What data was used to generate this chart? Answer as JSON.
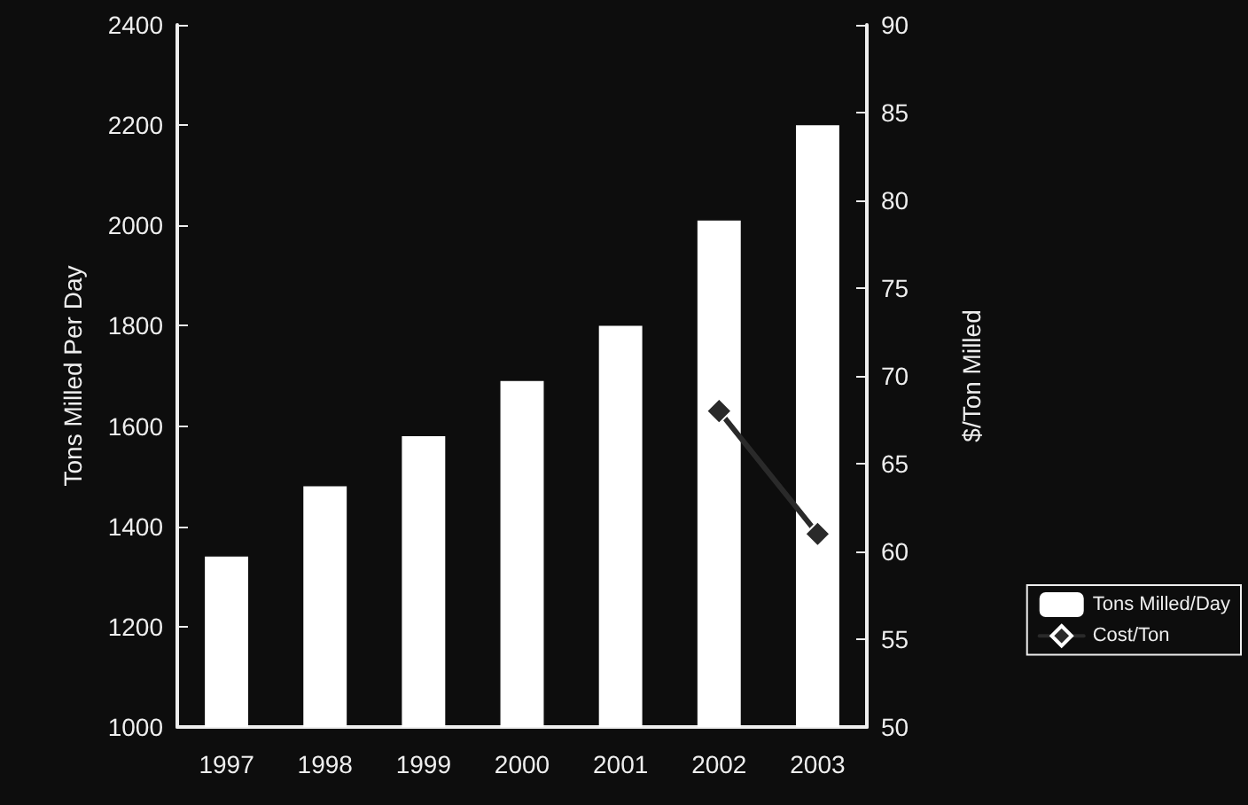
{
  "chart_data": {
    "type": "bar",
    "categories": [
      "1997",
      "1998",
      "1999",
      "2000",
      "2001",
      "2002",
      "2003"
    ],
    "series": [
      {
        "name": "Tons Milled/Day",
        "color": "#ffffff",
        "values": [
          1340,
          1480,
          1580,
          1690,
          1800,
          2010,
          2200
        ]
      },
      {
        "name": "Cost/Ton",
        "type": "line",
        "axis": "y2",
        "color": "#2a2a2a",
        "marker": "diamond",
        "values": [
          null,
          null,
          null,
          null,
          null,
          68,
          61
        ]
      }
    ],
    "ylabel": "Tons Milled Per Day",
    "y2label": "$/Ton Milled",
    "ylim": [
      1000,
      2400
    ],
    "yticks": [
      1000,
      1200,
      1400,
      1600,
      1800,
      2000,
      2200,
      2400
    ],
    "y2lim": [
      50,
      90
    ],
    "y2ticks": [
      50,
      55,
      60,
      65,
      70,
      75,
      80,
      85,
      90
    ],
    "grid": false,
    "legend": "right"
  }
}
